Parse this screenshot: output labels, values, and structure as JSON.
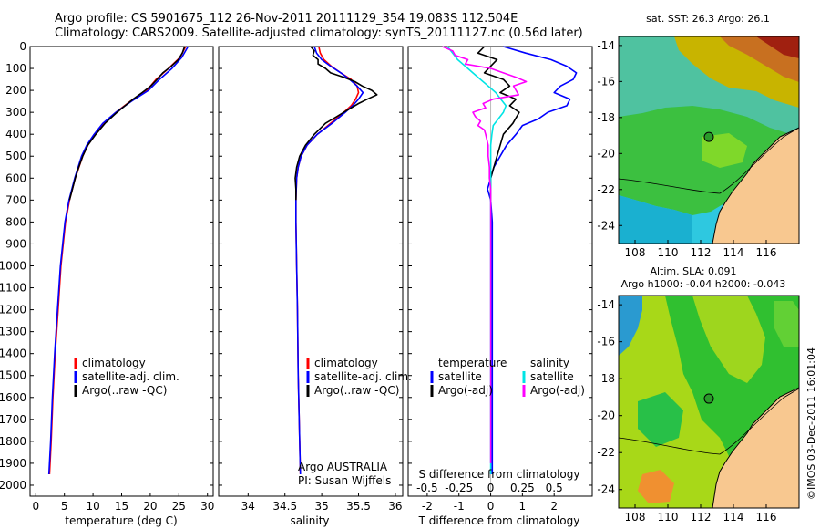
{
  "header": {
    "line1": "Argo profile: CS 5901675_112 26-Nov-2011 20111129_354 19.083S 112.504E",
    "line2": "Climatology: CARS2009. Satellite-adjusted climatology: synTS_20111127.nc (0.56d later)"
  },
  "colors": {
    "red": "#ff0000",
    "blue": "#0000ff",
    "black": "#000000",
    "cyan": "#00e5e5",
    "magenta": "#ff00ff"
  },
  "depth_ticks": [
    "0",
    "100",
    "200",
    "300",
    "400",
    "500",
    "600",
    "700",
    "800",
    "900",
    "1000",
    "1100",
    "1200",
    "1300",
    "1400",
    "1500",
    "1600",
    "1700",
    "1800",
    "1900",
    "2000"
  ],
  "chart_data": [
    {
      "type": "line",
      "id": "temperature",
      "xlabel": "temperature (deg C)",
      "ylabel": "depth",
      "xlim": [
        -1,
        31
      ],
      "ylim": [
        2050,
        0
      ],
      "x_ticks": [
        "0",
        "5",
        "10",
        "15",
        "20",
        "25",
        "30"
      ],
      "legend": [
        "climatology",
        "satellite-adj. clim.",
        "Argo(..raw -QC)"
      ],
      "series": [
        {
          "name": "climatology",
          "color": "red",
          "depth": [
            0,
            50,
            100,
            150,
            200,
            250,
            300,
            350,
            400,
            450,
            500,
            600,
            700,
            800,
            900,
            1000,
            1200,
            1400,
            1600,
            1800,
            1950
          ],
          "values": [
            26.2,
            25.2,
            23.2,
            21.0,
            19.4,
            16.5,
            14.0,
            12.0,
            10.4,
            9.1,
            8.2,
            6.9,
            5.9,
            5.2,
            4.8,
            4.4,
            3.9,
            3.4,
            3.0,
            2.7,
            2.4
          ]
        },
        {
          "name": "satellite-adj. clim.",
          "color": "blue",
          "depth": [
            0,
            50,
            100,
            150,
            200,
            250,
            300,
            350,
            400,
            450,
            500,
            600,
            700,
            800,
            900,
            1000,
            1200,
            1400,
            1600,
            1800,
            1950
          ],
          "values": [
            26.6,
            25.5,
            23.8,
            21.6,
            19.7,
            16.7,
            14.0,
            11.7,
            10.2,
            8.9,
            8.0,
            6.8,
            5.8,
            5.1,
            4.7,
            4.3,
            3.8,
            3.3,
            2.9,
            2.6,
            2.3
          ]
        },
        {
          "name": "Argo(..raw -QC)",
          "color": "black",
          "depth": [
            0,
            30,
            60,
            90,
            120,
            150,
            180,
            210,
            240,
            270,
            300,
            350,
            400,
            450,
            500,
            550,
            600,
            650,
            700
          ],
          "values": [
            26.0,
            25.6,
            24.9,
            23.7,
            22.2,
            21.2,
            20.1,
            18.6,
            17.0,
            15.6,
            14.2,
            12.1,
            10.5,
            9.1,
            8.2,
            7.5,
            6.9,
            6.4,
            5.9
          ]
        }
      ],
      "annotations": []
    },
    {
      "type": "line",
      "id": "salinity",
      "xlabel": "salinity",
      "ylabel": "depth",
      "xlim": [
        33.6,
        36.1
      ],
      "ylim": [
        2050,
        0
      ],
      "x_ticks": [
        "34",
        "34.5",
        "35",
        "35.5",
        "36"
      ],
      "legend": [
        "climatology",
        "satellite-adj. clim.",
        "Argo(..raw -QC)"
      ],
      "series": [
        {
          "name": "climatology",
          "color": "red",
          "depth": [
            0,
            30,
            60,
            90,
            120,
            150,
            180,
            210,
            240,
            270,
            300,
            350,
            400,
            450,
            500,
            550,
            600,
            700,
            800,
            1000,
            1200,
            1500,
            1800,
            1950
          ],
          "values": [
            34.96,
            34.98,
            35.03,
            35.13,
            35.26,
            35.4,
            35.48,
            35.5,
            35.46,
            35.4,
            35.3,
            35.12,
            34.94,
            34.8,
            34.72,
            34.68,
            34.66,
            34.65,
            34.65,
            34.66,
            34.67,
            34.68,
            34.7,
            34.71
          ]
        },
        {
          "name": "satellite-adj. clim.",
          "color": "blue",
          "depth": [
            0,
            30,
            60,
            90,
            120,
            150,
            180,
            210,
            240,
            270,
            300,
            350,
            400,
            450,
            500,
            550,
            600,
            700,
            800,
            1000,
            1200,
            1500,
            1800,
            1950
          ],
          "values": [
            34.9,
            34.93,
            35.0,
            35.12,
            35.26,
            35.38,
            35.48,
            35.56,
            35.5,
            35.42,
            35.32,
            35.14,
            34.94,
            34.8,
            34.72,
            34.68,
            34.66,
            34.65,
            34.65,
            34.66,
            34.67,
            34.68,
            34.7,
            34.71
          ]
        },
        {
          "name": "Argo(..raw -QC)",
          "color": "black",
          "depth": [
            0,
            20,
            40,
            60,
            80,
            100,
            120,
            140,
            160,
            180,
            200,
            220,
            240,
            260,
            280,
            300,
            320,
            350,
            380,
            400,
            450,
            500,
            550,
            600,
            650,
            700
          ],
          "values": [
            34.85,
            34.9,
            34.88,
            34.95,
            34.95,
            35.05,
            35.12,
            35.3,
            35.45,
            35.55,
            35.68,
            35.75,
            35.62,
            35.5,
            35.4,
            35.3,
            35.2,
            35.05,
            34.96,
            34.9,
            34.78,
            34.7,
            34.66,
            34.64,
            34.65,
            34.65
          ]
        }
      ],
      "annotations": [
        "Argo AUSTRALIA",
        "PI: Susan Wijffels"
      ]
    },
    {
      "type": "line",
      "id": "difference",
      "xlabel": "T difference from climatology",
      "x2label": "S difference from climatology",
      "ylabel": "depth",
      "xlim": [
        -2.6,
        3.2
      ],
      "ylim": [
        2050,
        0
      ],
      "x_ticks": [
        "-2",
        "-1",
        "0",
        "1",
        "2"
      ],
      "x2_ticks": [
        "-0.5",
        "-0.25",
        "0",
        "0.25",
        "0.5"
      ],
      "legend_temperature_title": "temperature",
      "legend_salinity_title": "salinity",
      "legend": [
        "satellite",
        "Argo(-adj)",
        "satellite",
        "Argo(-adj)"
      ],
      "series": [
        {
          "name": "temperature satellite",
          "color": "blue",
          "depth": [
            0,
            30,
            60,
            90,
            120,
            150,
            180,
            210,
            240,
            270,
            300,
            330,
            360,
            400,
            450,
            500,
            550,
            600,
            650,
            700,
            800,
            1000,
            1200,
            1500,
            1800,
            1950
          ],
          "values": [
            0.4,
            1.1,
            1.9,
            2.4,
            2.7,
            2.6,
            2.2,
            2.0,
            2.5,
            2.4,
            1.8,
            1.5,
            1.0,
            0.8,
            0.5,
            0.3,
            0.1,
            0.0,
            -0.1,
            0.0,
            0.05,
            0.05,
            0.05,
            0.05,
            0.05,
            0.05
          ]
        },
        {
          "name": "temperature Argo(-adj)",
          "color": "black",
          "depth": [
            0,
            30,
            60,
            90,
            120,
            150,
            180,
            210,
            240,
            270,
            300,
            350,
            400,
            450,
            500,
            550,
            600,
            650,
            700
          ],
          "values": [
            -0.2,
            -0.4,
            0.2,
            0.0,
            -0.2,
            0.4,
            0.6,
            0.3,
            0.8,
            0.6,
            0.9,
            0.7,
            0.4,
            0.3,
            0.2,
            0.1,
            0.0,
            0.0,
            0.0
          ]
        },
        {
          "name": "salinity satellite",
          "color": "cyan",
          "depth": [
            0,
            30,
            60,
            90,
            120,
            150,
            180,
            210,
            240,
            270,
            300,
            330,
            360,
            400,
            450,
            500,
            600,
            700,
            800,
            1000,
            1200,
            1500,
            1800,
            1950
          ],
          "values": [
            -0.34,
            -0.3,
            -0.26,
            -0.2,
            -0.14,
            -0.08,
            -0.02,
            0.04,
            0.08,
            0.12,
            0.1,
            0.06,
            0.02,
            0.01,
            0.0,
            0.0,
            0.0,
            0.0,
            0.0,
            0.0,
            0.0,
            0.0,
            0.0,
            0.0
          ]
        },
        {
          "name": "salinity Argo(-adj)",
          "color": "magenta",
          "depth": [
            0,
            20,
            40,
            60,
            80,
            100,
            120,
            140,
            160,
            180,
            200,
            220,
            240,
            260,
            280,
            300,
            320,
            340,
            360,
            380,
            400,
            450,
            500,
            550,
            600,
            650,
            700,
            1900
          ],
          "values": [
            -0.38,
            -0.3,
            -0.28,
            -0.18,
            -0.2,
            0.0,
            0.1,
            0.2,
            0.28,
            0.18,
            0.2,
            0.22,
            0.02,
            -0.06,
            -0.04,
            -0.14,
            -0.12,
            -0.08,
            -0.1,
            -0.05,
            -0.04,
            -0.02,
            -0.02,
            -0.01,
            -0.01,
            0.0,
            0.0,
            0.0
          ]
        }
      ],
      "annotations": []
    },
    {
      "type": "heatmap",
      "id": "sst_map",
      "title": "sat. SST: 26.3 Argo: 26.1",
      "xlim": [
        107,
        118
      ],
      "ylim": [
        -25,
        -13.5
      ],
      "x_ticks": [
        "108",
        "110",
        "112",
        "114",
        "116"
      ],
      "y_ticks": [
        "-14",
        "-16",
        "-18",
        "-20",
        "-22",
        "-24"
      ],
      "marker": {
        "lon": 112.5,
        "lat": -19.08
      }
    },
    {
      "type": "heatmap",
      "id": "sla_map",
      "title": "Altim. SLA: 0.091",
      "subtitle": "Argo h1000: -0.04 h2000: -0.043",
      "xlim": [
        107,
        118
      ],
      "ylim": [
        -25,
        -13.5
      ],
      "x_ticks": [
        "108",
        "110",
        "112",
        "114",
        "116"
      ],
      "y_ticks": [
        "-14",
        "-16",
        "-18",
        "-20",
        "-22",
        "-24"
      ],
      "marker": {
        "lon": 112.5,
        "lat": -19.08
      }
    }
  ],
  "credit": "©IMOS 03-Dec-2011 16:01:04"
}
